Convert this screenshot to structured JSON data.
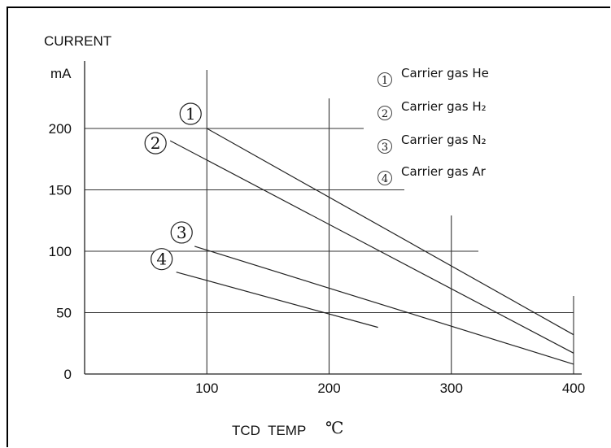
{
  "chart_data": {
    "type": "line",
    "title": "CURRENT",
    "ylabel": "mA",
    "xlabel": "TCD  TEMP",
    "xlabel_unit": "℃",
    "xlim": [
      0,
      400
    ],
    "ylim": [
      0,
      200
    ],
    "x_ticks": [
      "100",
      "200",
      "300",
      "400"
    ],
    "y_ticks": [
      "0",
      "50",
      "100",
      "150",
      "200"
    ],
    "grid": true,
    "legend_position": "top-right",
    "series": [
      {
        "marker": "①",
        "name": "Carrier gas He",
        "x": [
          100,
          400
        ],
        "y": [
          200,
          32
        ]
      },
      {
        "marker": "②",
        "name": "Carrier gas H₂",
        "x": [
          70,
          400
        ],
        "y": [
          190,
          17
        ]
      },
      {
        "marker": "③",
        "name": "Carrier gas N₂",
        "x": [
          90,
          400
        ],
        "y": [
          104,
          8
        ]
      },
      {
        "marker": "④",
        "name": "Carrier gas Ar",
        "x": [
          75,
          240
        ],
        "y": [
          83,
          38
        ]
      }
    ]
  }
}
